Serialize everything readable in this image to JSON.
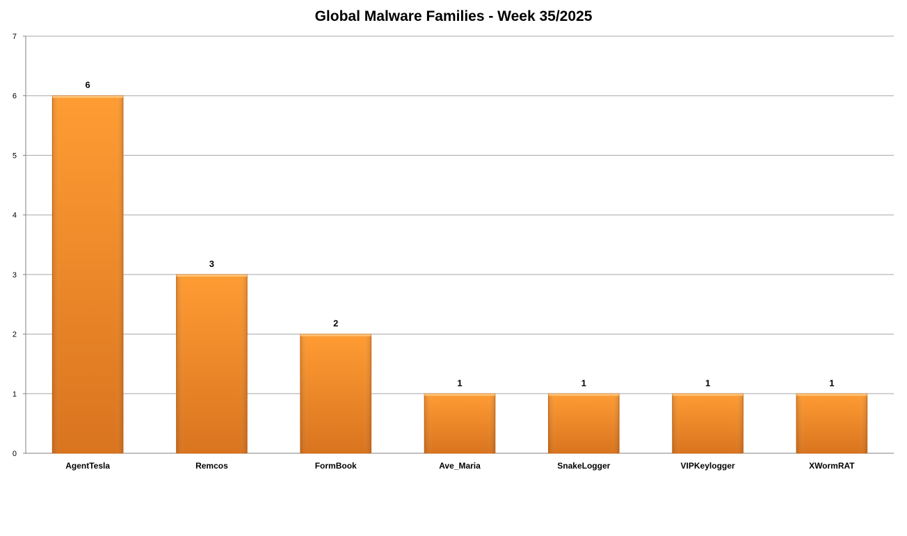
{
  "chart_data": {
    "type": "bar",
    "title": "Global Malware Families - Week 35/2025",
    "categories": [
      "AgentTesla",
      "Remcos",
      "FormBook",
      "Ave_Maria",
      "SnakeLogger",
      "VIPKeylogger",
      "XWormRAT"
    ],
    "values": [
      6,
      3,
      2,
      1,
      1,
      1,
      1
    ],
    "ylim": [
      0,
      7
    ],
    "yticks": [
      0,
      1,
      2,
      3,
      4,
      5,
      6,
      7
    ],
    "grid": true,
    "data_labels": true,
    "colors": {
      "bar": "#f7931e",
      "bar_dark": "#d9711f",
      "grid": "#a6a6a6",
      "axis": "#7f7f7f"
    }
  }
}
